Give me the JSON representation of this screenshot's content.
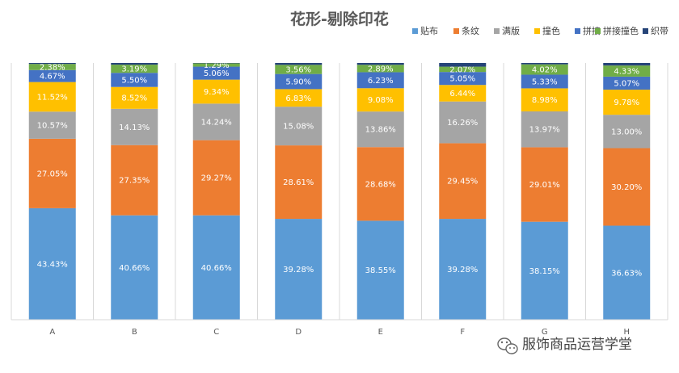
{
  "chart_data": {
    "type": "bar",
    "stacked": "percent",
    "title": "花形-剔除印花",
    "xlabel": "",
    "ylabel": "",
    "ylim": [
      0,
      100
    ],
    "grid": false,
    "legend_position": "top-right",
    "categories": [
      "A",
      "B",
      "C",
      "D",
      "E",
      "F",
      "G",
      "H"
    ],
    "series": [
      {
        "name": "贴布",
        "color": "#5B9BD5",
        "values": [
          43.43,
          40.66,
          40.66,
          39.28,
          38.55,
          39.28,
          38.15,
          36.63
        ]
      },
      {
        "name": "条纹",
        "color": "#ED7D31",
        "values": [
          27.05,
          27.35,
          29.27,
          28.61,
          28.68,
          29.45,
          29.01,
          30.2
        ]
      },
      {
        "name": "满版",
        "color": "#A5A5A5",
        "values": [
          10.57,
          14.13,
          14.24,
          15.08,
          13.86,
          16.26,
          13.97,
          13.0
        ]
      },
      {
        "name": "撞色",
        "color": "#FFC000",
        "values": [
          11.52,
          8.52,
          9.34,
          6.83,
          9.08,
          6.44,
          8.98,
          9.78
        ]
      },
      {
        "name": "拼接",
        "color": "#4472C4",
        "values": [
          4.67,
          5.5,
          5.06,
          5.9,
          6.23,
          5.05,
          5.33,
          5.07
        ]
      },
      {
        "name": "拼接撞色",
        "color": "#70AD47",
        "values": [
          2.38,
          3.19,
          1.29,
          3.56,
          2.89,
          2.07,
          4.02,
          4.33
        ]
      },
      {
        "name": "织带",
        "color": "#264478",
        "values": [
          0.38,
          0.65,
          0.14,
          0.73,
          0.71,
          1.44,
          0.53,
          0.99
        ]
      }
    ]
  },
  "watermark": {
    "text": "服饰商品运营学堂",
    "icon": "wechat-icon"
  }
}
